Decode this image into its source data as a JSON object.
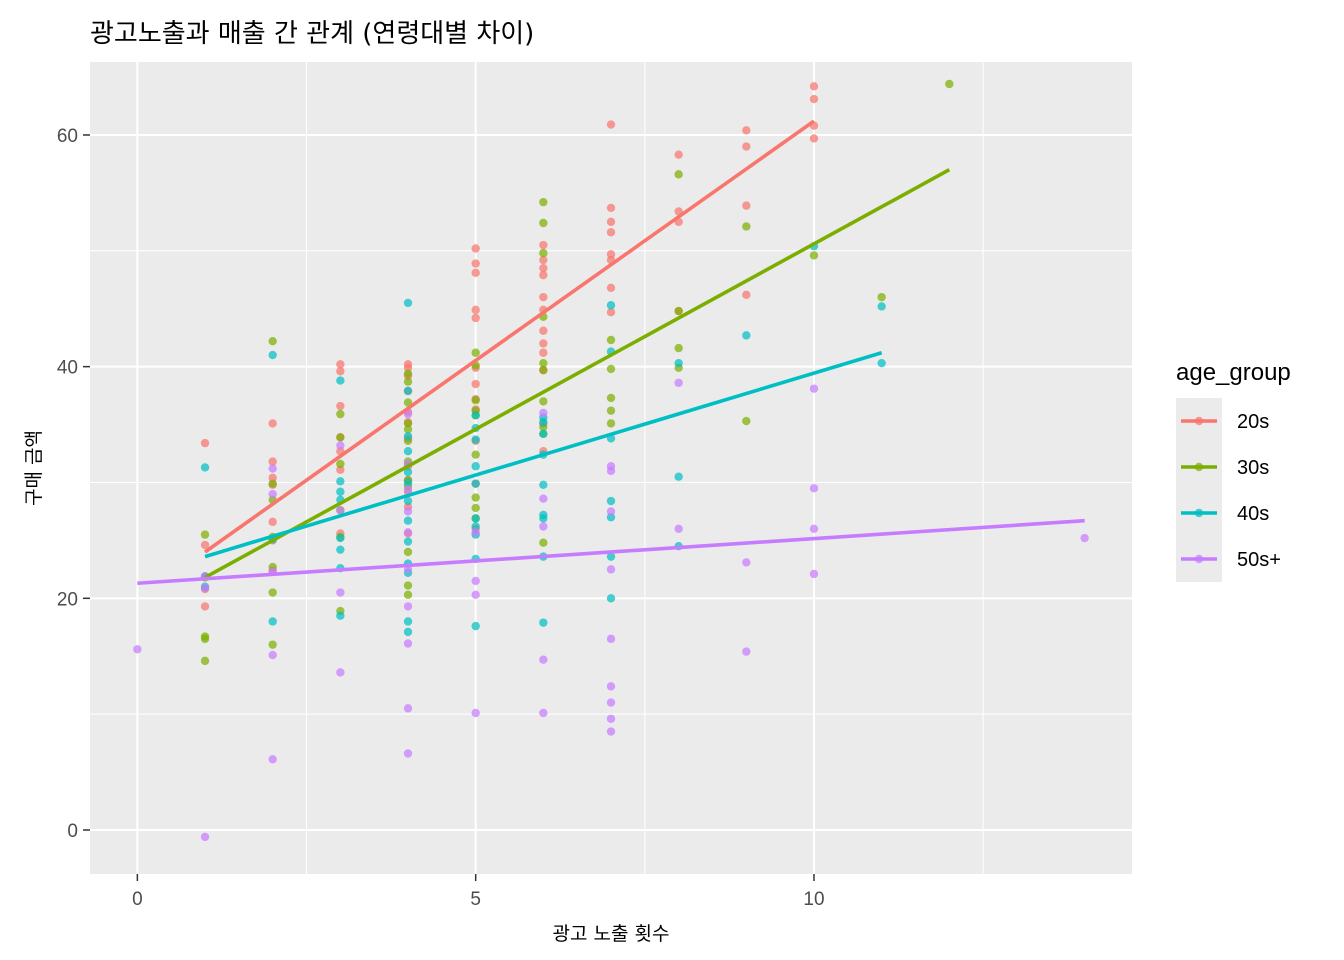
{
  "chart_data": {
    "type": "scatter",
    "title": "광고노출과 매출 간 관계 (연령대별 차이)",
    "xlabel": "광고 노출 횟수",
    "ylabel": "구매 금액",
    "xlim": [
      -0.7,
      14.7
    ],
    "ylim": [
      -3.8,
      66.3
    ],
    "x_ticks": [
      0,
      5,
      10
    ],
    "y_ticks": [
      0,
      20,
      40,
      60
    ],
    "x_tick_labels": [
      "0",
      "5",
      "10"
    ],
    "y_tick_labels": [
      "0",
      "20",
      "40",
      "60"
    ],
    "grid": true,
    "background": "#EBEBEB",
    "legend": {
      "title": "age_group",
      "position": "right",
      "entries": [
        "20s",
        "30s",
        "40s",
        "50s+"
      ]
    },
    "series": [
      {
        "name": "20s",
        "color": "#F8766D",
        "points": [
          [
            1,
            33.4
          ],
          [
            1,
            24.6
          ],
          [
            1,
            20.8
          ],
          [
            1,
            19.3
          ],
          [
            2,
            35.1
          ],
          [
            2,
            31.8
          ],
          [
            2,
            30.4
          ],
          [
            2,
            29.8
          ],
          [
            2,
            26.6
          ],
          [
            2,
            25.0
          ],
          [
            2,
            22.4
          ],
          [
            3,
            40.2
          ],
          [
            3,
            39.6
          ],
          [
            3,
            36.6
          ],
          [
            3,
            33.9
          ],
          [
            3,
            32.7
          ],
          [
            3,
            31.1
          ],
          [
            3,
            25.6
          ],
          [
            4,
            40.2
          ],
          [
            4,
            39.9
          ],
          [
            4,
            39.2
          ],
          [
            4,
            37.9
          ],
          [
            4,
            36.1
          ],
          [
            4,
            35.2
          ],
          [
            4,
            33.8
          ],
          [
            4,
            31.4
          ],
          [
            4,
            30.2
          ],
          [
            4,
            29.2
          ],
          [
            4,
            27.9
          ],
          [
            4,
            25.6
          ],
          [
            5,
            50.2
          ],
          [
            5,
            48.9
          ],
          [
            5,
            48.1
          ],
          [
            5,
            44.9
          ],
          [
            5,
            44.2
          ],
          [
            5,
            39.9
          ],
          [
            5,
            38.5
          ],
          [
            5,
            37.2
          ],
          [
            5,
            36.3
          ],
          [
            5,
            33.6
          ],
          [
            5,
            29.9
          ],
          [
            5,
            26.0
          ],
          [
            6,
            50.5
          ],
          [
            6,
            49.2
          ],
          [
            6,
            48.5
          ],
          [
            6,
            47.9
          ],
          [
            6,
            46.0
          ],
          [
            6,
            44.9
          ],
          [
            6,
            43.1
          ],
          [
            6,
            42.0
          ],
          [
            6,
            41.2
          ],
          [
            6,
            39.7
          ],
          [
            6,
            35.1
          ],
          [
            6,
            32.7
          ],
          [
            7,
            60.9
          ],
          [
            7,
            53.7
          ],
          [
            7,
            52.5
          ],
          [
            7,
            51.6
          ],
          [
            7,
            49.7
          ],
          [
            7,
            49.2
          ],
          [
            7,
            46.8
          ],
          [
            7,
            44.7
          ],
          [
            8,
            58.3
          ],
          [
            8,
            53.4
          ],
          [
            8,
            52.5
          ],
          [
            8,
            44.8
          ],
          [
            9,
            60.4
          ],
          [
            9,
            59.0
          ],
          [
            9,
            53.9
          ],
          [
            9,
            46.2
          ],
          [
            10,
            64.2
          ],
          [
            10,
            63.1
          ],
          [
            10,
            60.8
          ],
          [
            10,
            59.7
          ]
        ],
        "trend": [
          [
            1,
            24.0
          ],
          [
            10,
            61.2
          ]
        ]
      },
      {
        "name": "30s",
        "color": "#7CAE00",
        "points": [
          [
            1,
            25.5
          ],
          [
            1,
            21.8
          ],
          [
            1,
            16.7
          ],
          [
            1,
            16.5
          ],
          [
            1,
            14.6
          ],
          [
            2,
            42.2
          ],
          [
            2,
            29.9
          ],
          [
            2,
            28.5
          ],
          [
            2,
            25.3
          ],
          [
            2,
            22.7
          ],
          [
            2,
            20.5
          ],
          [
            2,
            16.0
          ],
          [
            3,
            35.9
          ],
          [
            3,
            33.9
          ],
          [
            3,
            31.6
          ],
          [
            3,
            27.6
          ],
          [
            3,
            25.3
          ],
          [
            3,
            18.9
          ],
          [
            4,
            39.4
          ],
          [
            4,
            38.7
          ],
          [
            4,
            36.9
          ],
          [
            4,
            35.1
          ],
          [
            4,
            34.6
          ],
          [
            4,
            33.6
          ],
          [
            4,
            31.8
          ],
          [
            4,
            30.2
          ],
          [
            4,
            29.7
          ],
          [
            4,
            24.0
          ],
          [
            4,
            21.1
          ],
          [
            4,
            20.3
          ],
          [
            5,
            41.2
          ],
          [
            5,
            40.1
          ],
          [
            5,
            37.1
          ],
          [
            5,
            36.2
          ],
          [
            5,
            35.8
          ],
          [
            5,
            32.4
          ],
          [
            5,
            28.7
          ],
          [
            5,
            27.8
          ],
          [
            5,
            26.9
          ],
          [
            6,
            54.2
          ],
          [
            6,
            52.4
          ],
          [
            6,
            49.8
          ],
          [
            6,
            44.3
          ],
          [
            6,
            40.3
          ],
          [
            6,
            39.7
          ],
          [
            6,
            37.0
          ],
          [
            6,
            34.8
          ],
          [
            6,
            34.2
          ],
          [
            6,
            24.8
          ],
          [
            7,
            42.3
          ],
          [
            7,
            39.8
          ],
          [
            7,
            37.3
          ],
          [
            7,
            36.2
          ],
          [
            7,
            35.1
          ],
          [
            8,
            56.6
          ],
          [
            8,
            44.8
          ],
          [
            8,
            41.6
          ],
          [
            8,
            39.9
          ],
          [
            9,
            52.1
          ],
          [
            9,
            35.3
          ],
          [
            10,
            49.6
          ],
          [
            11,
            46.0
          ],
          [
            12,
            64.4
          ]
        ],
        "trend": [
          [
            1,
            21.8
          ],
          [
            12,
            57.0
          ]
        ]
      },
      {
        "name": "40s",
        "color": "#00BFC4",
        "points": [
          [
            1,
            31.3
          ],
          [
            1,
            21.9
          ],
          [
            1,
            21.0
          ],
          [
            2,
            41.0
          ],
          [
            2,
            25.1
          ],
          [
            2,
            18.0
          ],
          [
            3,
            38.8
          ],
          [
            3,
            30.1
          ],
          [
            3,
            29.2
          ],
          [
            3,
            28.5
          ],
          [
            3,
            25.2
          ],
          [
            3,
            24.2
          ],
          [
            3,
            22.6
          ],
          [
            3,
            18.5
          ],
          [
            4,
            45.5
          ],
          [
            4,
            37.9
          ],
          [
            4,
            34.0
          ],
          [
            4,
            32.7
          ],
          [
            4,
            30.9
          ],
          [
            4,
            30.0
          ],
          [
            4,
            28.4
          ],
          [
            4,
            26.7
          ],
          [
            4,
            24.9
          ],
          [
            4,
            23.0
          ],
          [
            4,
            22.2
          ],
          [
            4,
            18.0
          ],
          [
            4,
            17.1
          ],
          [
            5,
            35.8
          ],
          [
            5,
            34.7
          ],
          [
            5,
            33.7
          ],
          [
            5,
            31.4
          ],
          [
            5,
            29.9
          ],
          [
            5,
            26.9
          ],
          [
            5,
            26.2
          ],
          [
            5,
            25.5
          ],
          [
            5,
            23.4
          ],
          [
            5,
            17.6
          ],
          [
            6,
            35.6
          ],
          [
            6,
            35.2
          ],
          [
            6,
            34.2
          ],
          [
            6,
            32.4
          ],
          [
            6,
            29.8
          ],
          [
            6,
            27.2
          ],
          [
            6,
            26.9
          ],
          [
            6,
            23.6
          ],
          [
            6,
            17.9
          ],
          [
            7,
            45.3
          ],
          [
            7,
            41.3
          ],
          [
            7,
            33.8
          ],
          [
            7,
            28.4
          ],
          [
            7,
            27.0
          ],
          [
            7,
            23.6
          ],
          [
            7,
            20.0
          ],
          [
            8,
            40.3
          ],
          [
            8,
            30.5
          ],
          [
            8,
            24.5
          ],
          [
            9,
            42.7
          ],
          [
            10,
            50.4
          ],
          [
            11,
            45.2
          ],
          [
            11,
            40.3
          ]
        ],
        "trend": [
          [
            1,
            23.6
          ],
          [
            11,
            41.2
          ]
        ]
      },
      {
        "name": "50s+",
        "color": "#C77CFF",
        "points": [
          [
            0,
            15.6
          ],
          [
            1,
            21.9
          ],
          [
            1,
            20.9
          ],
          [
            1,
            -0.6
          ],
          [
            2,
            31.2
          ],
          [
            2,
            29.0
          ],
          [
            2,
            22.3
          ],
          [
            2,
            15.1
          ],
          [
            2,
            6.1
          ],
          [
            3,
            33.2
          ],
          [
            3,
            27.6
          ],
          [
            3,
            20.5
          ],
          [
            3,
            13.6
          ],
          [
            4,
            35.9
          ],
          [
            4,
            31.6
          ],
          [
            4,
            29.4
          ],
          [
            4,
            27.5
          ],
          [
            4,
            25.7
          ],
          [
            4,
            22.5
          ],
          [
            4,
            19.3
          ],
          [
            4,
            16.1
          ],
          [
            4,
            10.5
          ],
          [
            4,
            6.6
          ],
          [
            5,
            25.7
          ],
          [
            5,
            21.5
          ],
          [
            5,
            20.3
          ],
          [
            5,
            10.1
          ],
          [
            6,
            36.0
          ],
          [
            6,
            28.6
          ],
          [
            6,
            26.2
          ],
          [
            6,
            14.7
          ],
          [
            6,
            10.1
          ],
          [
            7,
            31.4
          ],
          [
            7,
            31.0
          ],
          [
            7,
            27.5
          ],
          [
            7,
            22.5
          ],
          [
            7,
            16.5
          ],
          [
            7,
            12.4
          ],
          [
            7,
            11.0
          ],
          [
            7,
            9.6
          ],
          [
            7,
            8.5
          ],
          [
            8,
            38.6
          ],
          [
            8,
            26.0
          ],
          [
            9,
            23.1
          ],
          [
            9,
            15.4
          ],
          [
            10,
            38.1
          ],
          [
            10,
            29.5
          ],
          [
            10,
            26.0
          ],
          [
            10,
            22.1
          ],
          [
            14,
            25.2
          ]
        ],
        "trend": [
          [
            0,
            21.3
          ],
          [
            14,
            26.7
          ]
        ]
      }
    ]
  }
}
